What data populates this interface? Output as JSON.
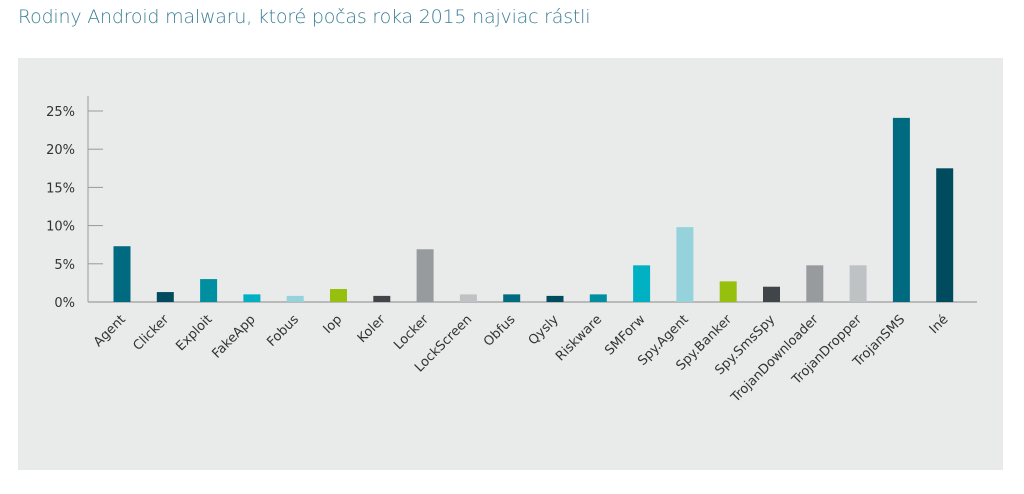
{
  "chart_data": {
    "type": "bar",
    "title": "Rodiny Android malwaru, ktoré počas roka 2015 najviac rástli",
    "xlabel": "",
    "ylabel": "",
    "ylim": [
      0,
      25
    ],
    "yticks": [
      "0%",
      "5%",
      "10%",
      "15%",
      "20%",
      "25%"
    ],
    "ytick_values": [
      0,
      5,
      10,
      15,
      20,
      25
    ],
    "grid": false,
    "categories": [
      "Agent",
      "Clicker",
      "Exploit",
      "FakeApp",
      "Fobus",
      "Iop",
      "Koler",
      "Locker",
      "LockScreen",
      "Obfus",
      "Qysly",
      "Riskware",
      "SMForw",
      "Spy.Agent",
      "Spy.Banker",
      "Spy.SmsSpy",
      "TrojanDownloader",
      "TrojanDropper",
      "TrojanSMS",
      "Iné"
    ],
    "values": [
      7.3,
      1.3,
      3.0,
      1.0,
      0.8,
      1.7,
      0.8,
      6.9,
      1.0,
      1.0,
      0.8,
      1.0,
      4.8,
      9.8,
      2.7,
      2.0,
      4.8,
      4.8,
      24.1,
      17.5
    ],
    "colors": [
      "#006a80",
      "#004c5e",
      "#008fa0",
      "#00b1c4",
      "#96d2dc",
      "#97bf0d",
      "#3f4549",
      "#979b9e",
      "#bfc2c5",
      "#006a80",
      "#004c5e",
      "#008fa0",
      "#00b1c4",
      "#96d2dc",
      "#97bf0d",
      "#3f4549",
      "#979b9e",
      "#bfc2c5",
      "#006a80",
      "#004c5e"
    ]
  }
}
